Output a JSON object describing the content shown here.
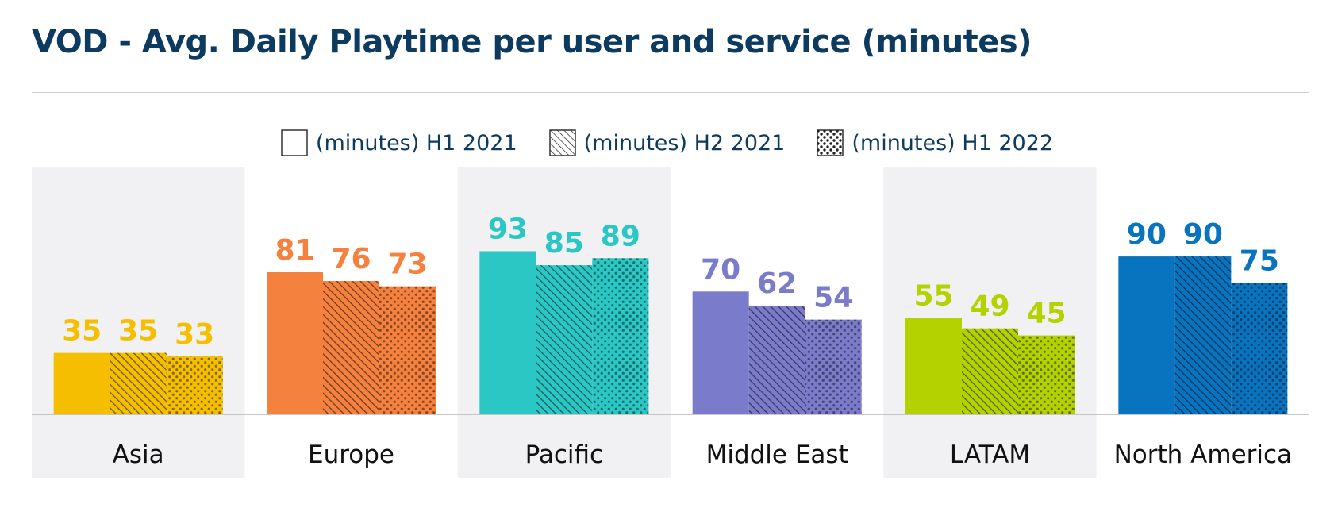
{
  "chart_data": {
    "type": "bar",
    "title": "VOD - Avg. Daily Playtime per user and service (minutes)",
    "xlabel": "",
    "ylabel": "",
    "ylim": [
      0,
      100
    ],
    "grid": false,
    "legend_position": "top-center",
    "categories": [
      "Asia",
      "Europe",
      "Pacific",
      "Middle East",
      "LATAM",
      "North America"
    ],
    "category_colors": [
      "#f5bf00",
      "#f5813f",
      "#2bc7c4",
      "#7b7bcb",
      "#b4d200",
      "#0873bf"
    ],
    "series": [
      {
        "name": "(minutes) H1 2021",
        "pattern": "solid",
        "values": [
          35,
          81,
          93,
          70,
          55,
          90
        ]
      },
      {
        "name": "(minutes) H2 2021",
        "pattern": "hatched",
        "values": [
          35,
          76,
          85,
          62,
          49,
          90
        ]
      },
      {
        "name": "(minutes) H1 2022",
        "pattern": "dotted",
        "values": [
          33,
          73,
          89,
          54,
          45,
          75
        ]
      }
    ]
  }
}
